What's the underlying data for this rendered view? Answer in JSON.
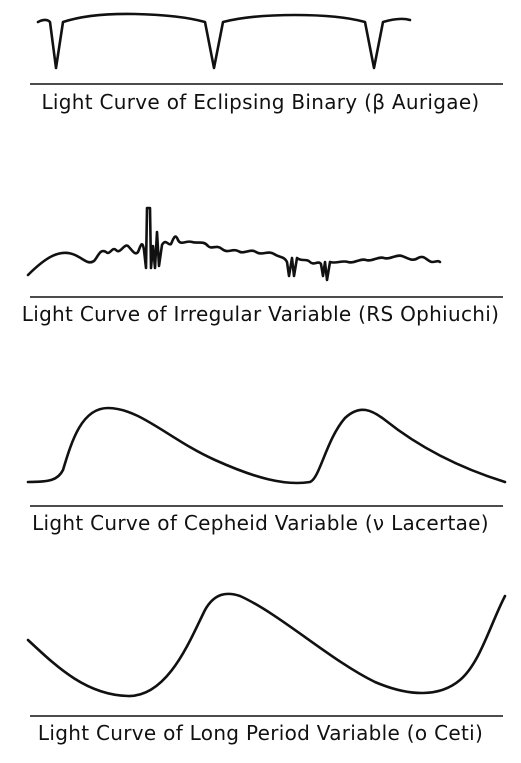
{
  "panels": [
    {
      "id": "eclipsing",
      "caption": "Light Curve of Eclipsing Binary (β Aurigae)"
    },
    {
      "id": "irregular",
      "caption": "Light Curve of Irregular Variable (RS Ophiuchi)"
    },
    {
      "id": "cepheid",
      "caption": "Light Curve of Cepheid Variable (ν Lacertae)"
    },
    {
      "id": "long-period",
      "caption": "Light Curve of Long Period Variable (o Ceti)"
    }
  ]
}
